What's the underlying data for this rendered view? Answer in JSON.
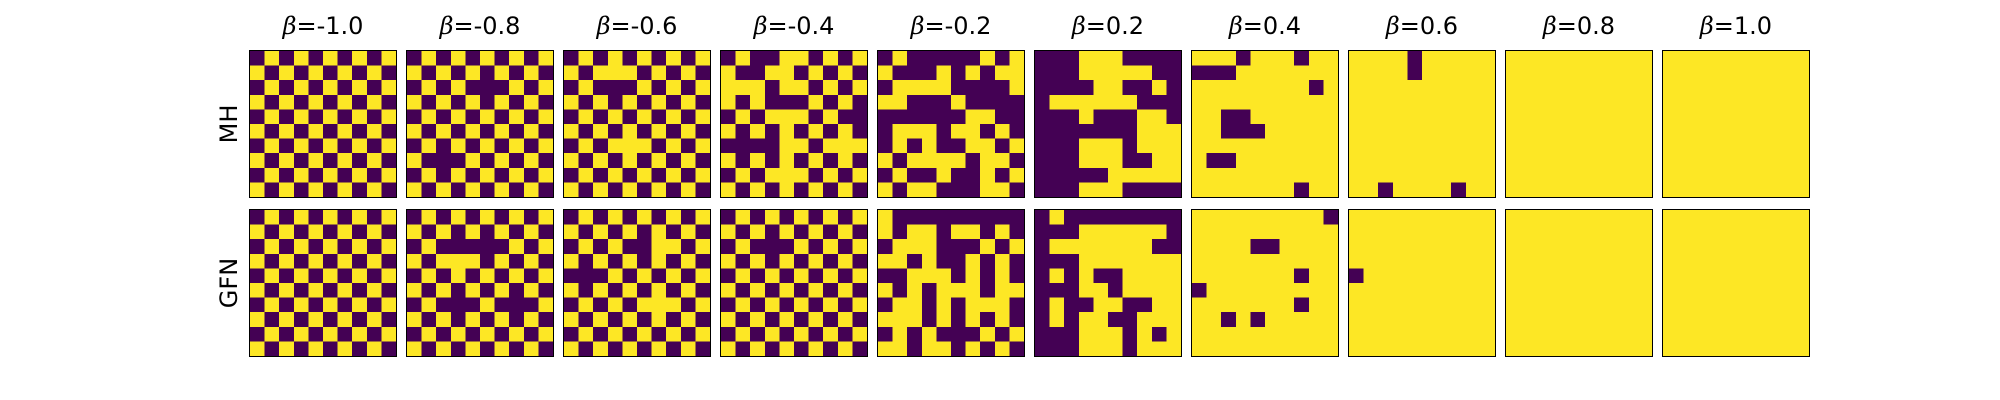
{
  "chart_data": {
    "type": "heatmap",
    "title": "",
    "xlabel": "",
    "ylabel": "",
    "grid_size": 10,
    "colors": {
      "0": "#440154",
      "1": "#fde725"
    },
    "columns": [
      {
        "prefix": "β",
        "value": "=-1.0"
      },
      {
        "prefix": "β",
        "value": "=-0.8"
      },
      {
        "prefix": "β",
        "value": "=-0.6"
      },
      {
        "prefix": "β",
        "value": "=-0.4"
      },
      {
        "prefix": "β",
        "value": "=-0.2"
      },
      {
        "prefix": "β",
        "value": "=0.2"
      },
      {
        "prefix": "β",
        "value": "=0.4"
      },
      {
        "prefix": "β",
        "value": "=0.6"
      },
      {
        "prefix": "β",
        "value": "=0.8"
      },
      {
        "prefix": "β",
        "value": "=1.0"
      }
    ],
    "rows": [
      {
        "label": "MH",
        "grids": [
          [
            "0101010101",
            "1010101010",
            "0101010101",
            "1010101010",
            "0101010101",
            "1010101010",
            "0101010101",
            "1010101010",
            "0101010101",
            "1010101010"
          ],
          [
            "0101010101",
            "1010101010",
            "0101000101",
            "1010101010",
            "0101010101",
            "1010101010",
            "0101010101",
            "1000101010",
            "0101010101",
            "1010101010"
          ],
          [
            "0101010101",
            "1011101010",
            "0100010101",
            "1010101010",
            "0101010101",
            "1010101010",
            "0101110101",
            "1010101010",
            "0101010101",
            "1010101010"
          ],
          [
            "0100110101",
            "1001101010",
            "1110110101",
            "1010001010",
            "0101110100",
            "1010101010",
            "0000110111",
            "1010101010",
            "0101110101",
            "1010101010"
          ],
          [
            "0100000101",
            "1000101011",
            "0111100001",
            "1100010000",
            "0000001100",
            "0111011010",
            "0101001101",
            "1011110110",
            "0100100101",
            "1011000110"
          ],
          [
            "0001110000",
            "0001111100",
            "0000110010",
            "0111111000",
            "0001000110",
            "0000000111",
            "0001110111",
            "0001110011",
            "0000011111",
            "0001110000"
          ],
          [
            "1110111011",
            "0001111111",
            "1111111101",
            "1111111111",
            "1100111111",
            "1100011111",
            "1111111111",
            "1001111111",
            "1111111111",
            "1111111011"
          ],
          [
            "1111011111",
            "1111011111",
            "1111111111",
            "1111111111",
            "1111111111",
            "1111111111",
            "1111111111",
            "1111111111",
            "1111111111",
            "1101111011"
          ],
          [
            "1111111111",
            "1111111111",
            "1111111111",
            "1111111111",
            "1111111111",
            "1111111111",
            "1111111111",
            "1111111111",
            "1111111111",
            "1111111111"
          ],
          [
            "1111111111",
            "1111111111",
            "1111111111",
            "1111111111",
            "1111111111",
            "1111111111",
            "1111111111",
            "1111111111",
            "1111111111",
            "1111111111"
          ]
        ]
      },
      {
        "label": "GFN",
        "grids": [
          [
            "0101010101",
            "1010101010",
            "0101010101",
            "1010101010",
            "0101010101",
            "1010101010",
            "0101010101",
            "1010101010",
            "0101010101",
            "1010101010"
          ],
          [
            "0101010101",
            "1010101010",
            "0100000101",
            "1011101010",
            "0101010101",
            "1010101010",
            "0100010001",
            "1010101010",
            "0101010101",
            "1010101010"
          ],
          [
            "0101010101",
            "1010101010",
            "0101001101",
            "1010101010",
            "0001010101",
            "1010101010",
            "0101011101",
            "1010101010",
            "0101010101",
            "1010101010"
          ],
          [
            "0101010101",
            "1010101010",
            "0100010101",
            "1010101010",
            "0101010101",
            "1010101010",
            "0101010101",
            "1010101010",
            "0101010101",
            "1010101010"
          ],
          [
            "1000000000",
            "1011011010",
            "0111000101",
            "1101001010",
            "0011101010",
            "1010111011",
            "0110101110",
            "1110101010",
            "0101000101",
            "1101101010"
          ],
          [
            "0100000000",
            "0001111110",
            "0111111100",
            "0001111111",
            "0101001111",
            "0001101111",
            "0100110011",
            "0101100111",
            "0001110101",
            "0001110111"
          ],
          [
            "1111111110",
            "1111111111",
            "1111001111",
            "1111111111",
            "1111111011",
            "0111111111",
            "1111111011",
            "1101011111",
            "1111111111",
            "1111111111"
          ],
          [
            "1111111111",
            "1111111111",
            "1111111111",
            "1111111111",
            "0111111111",
            "1111111111",
            "1111111111",
            "1111111111",
            "1111111111",
            "1111111111"
          ],
          [
            "1111111111",
            "1111111111",
            "1111111111",
            "1111111111",
            "1111111111",
            "1111111111",
            "1111111111",
            "1111111111",
            "1111111111",
            "1111111111"
          ],
          [
            "1111111111",
            "1111111111",
            "1111111111",
            "1111111111",
            "1111111111",
            "1111111111",
            "1111111111",
            "1111111111",
            "1111111111",
            "1111111111"
          ]
        ]
      }
    ]
  }
}
